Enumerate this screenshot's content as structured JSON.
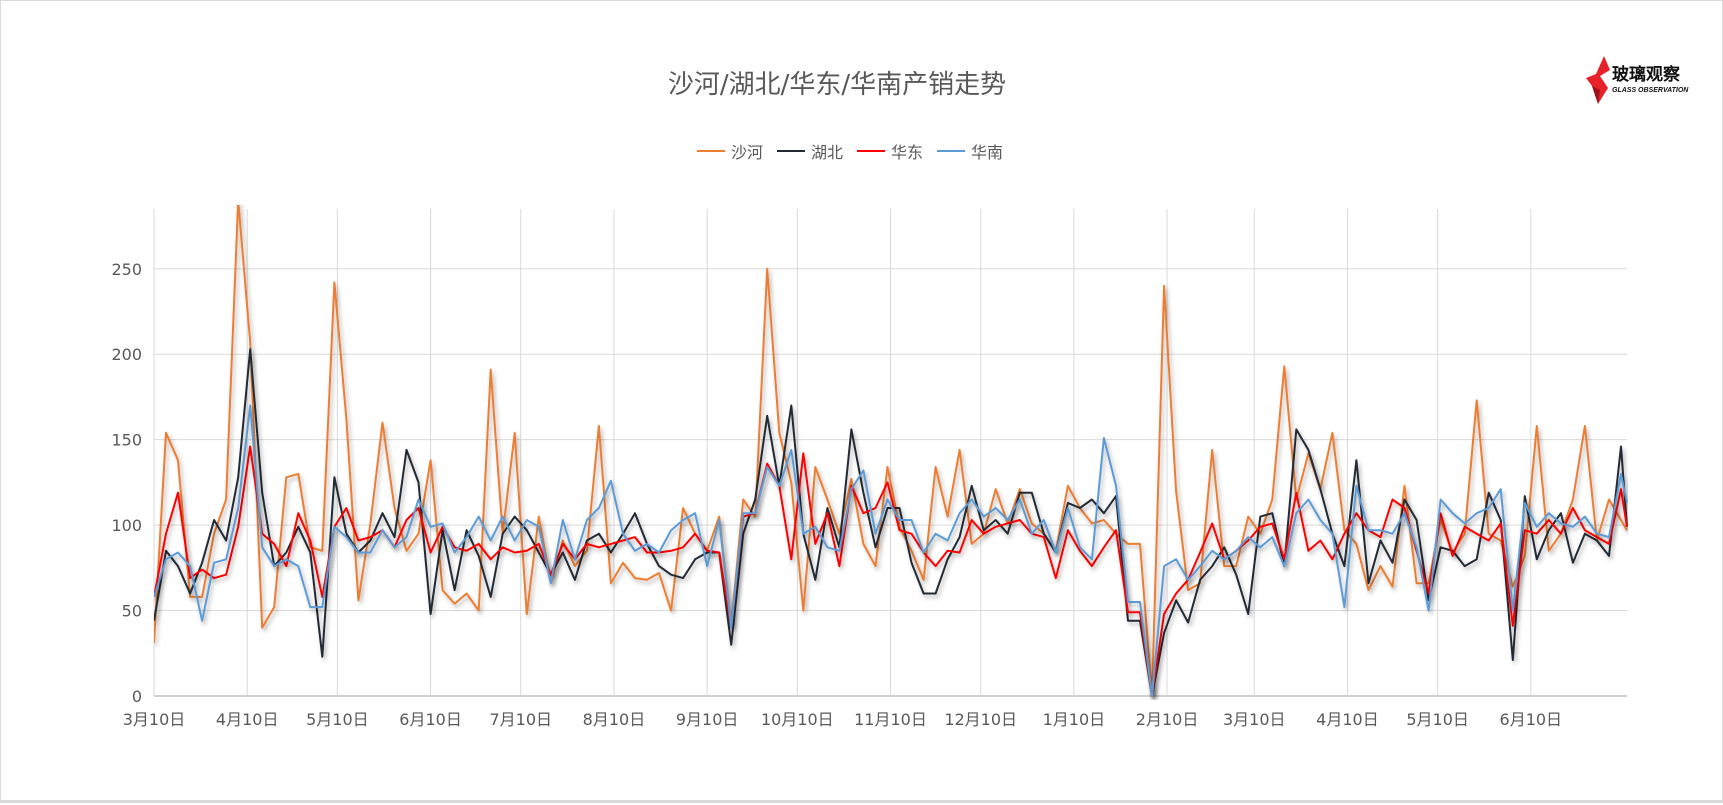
{
  "chart_data": {
    "type": "line",
    "title": "沙河/湖北/华东/华南产销走势",
    "xlabel": "",
    "ylabel": "",
    "ylim": [
      0,
      285
    ],
    "y_ticks": [
      "0",
      "50",
      "100",
      "150",
      "200",
      "250"
    ],
    "x_ticks": [
      {
        "date": "2023-03-10",
        "label": "3月10日"
      },
      {
        "date": "2023-04-10",
        "label": "4月10日"
      },
      {
        "date": "2023-05-10",
        "label": "5月10日"
      },
      {
        "date": "2023-06-10",
        "label": "6月10日"
      },
      {
        "date": "2023-07-10",
        "label": "7月10日"
      },
      {
        "date": "2023-08-10",
        "label": "8月10日"
      },
      {
        "date": "2023-09-10",
        "label": "9月10日"
      },
      {
        "date": "2023-10-10",
        "label": "10月10日"
      },
      {
        "date": "2023-11-10",
        "label": "11月10日"
      },
      {
        "date": "2023-12-10",
        "label": "12月10日"
      },
      {
        "date": "2024-01-10",
        "label": "1月10日"
      },
      {
        "date": "2024-02-10",
        "label": "2月10日"
      },
      {
        "date": "2024-03-10",
        "label": "3月10日"
      },
      {
        "date": "2024-04-10",
        "label": "4月10日"
      },
      {
        "date": "2024-05-10",
        "label": "5月10日"
      },
      {
        "date": "2024-06-10",
        "label": "6月10日"
      }
    ],
    "xlim": [
      "2023-03-10",
      "2024-07-12"
    ],
    "grid": true,
    "legend_position": "top",
    "x": [
      "2023-03-10",
      "2023-03-14",
      "2023-03-18",
      "2023-03-22",
      "2023-03-26",
      "2023-03-30",
      "2023-04-03",
      "2023-04-07",
      "2023-04-11",
      "2023-04-15",
      "2023-04-19",
      "2023-04-23",
      "2023-04-27",
      "2023-05-01",
      "2023-05-05",
      "2023-05-09",
      "2023-05-13",
      "2023-05-17",
      "2023-05-21",
      "2023-05-25",
      "2023-05-29",
      "2023-06-02",
      "2023-06-06",
      "2023-06-10",
      "2023-06-14",
      "2023-06-18",
      "2023-06-22",
      "2023-06-26",
      "2023-06-30",
      "2023-07-04",
      "2023-07-08",
      "2023-07-12",
      "2023-07-16",
      "2023-07-20",
      "2023-07-24",
      "2023-07-28",
      "2023-08-01",
      "2023-08-05",
      "2023-08-09",
      "2023-08-13",
      "2023-08-17",
      "2023-08-21",
      "2023-08-25",
      "2023-08-29",
      "2023-09-02",
      "2023-09-06",
      "2023-09-10",
      "2023-09-14",
      "2023-09-18",
      "2023-09-22",
      "2023-09-26",
      "2023-09-30",
      "2023-10-04",
      "2023-10-08",
      "2023-10-12",
      "2023-10-16",
      "2023-10-20",
      "2023-10-24",
      "2023-10-28",
      "2023-11-01",
      "2023-11-05",
      "2023-11-09",
      "2023-11-13",
      "2023-11-17",
      "2023-11-21",
      "2023-11-25",
      "2023-11-29",
      "2023-12-03",
      "2023-12-07",
      "2023-12-11",
      "2023-12-15",
      "2023-12-19",
      "2023-12-23",
      "2023-12-27",
      "2023-12-31",
      "2024-01-04",
      "2024-01-08",
      "2024-01-12",
      "2024-01-16",
      "2024-01-20",
      "2024-01-24",
      "2024-01-28",
      "2024-02-01",
      "2024-02-05",
      "2024-02-09",
      "2024-02-13",
      "2024-02-17",
      "2024-02-21",
      "2024-02-25",
      "2024-02-29",
      "2024-03-04",
      "2024-03-08",
      "2024-03-12",
      "2024-03-16",
      "2024-03-20",
      "2024-03-24",
      "2024-03-28",
      "2024-04-01",
      "2024-04-05",
      "2024-04-09",
      "2024-04-13",
      "2024-04-17",
      "2024-04-21",
      "2024-04-25",
      "2024-04-29",
      "2024-05-03",
      "2024-05-07",
      "2024-05-11",
      "2024-05-15",
      "2024-05-19",
      "2024-05-23",
      "2024-05-27",
      "2024-05-31",
      "2024-06-04",
      "2024-06-08",
      "2024-06-12",
      "2024-06-16",
      "2024-06-20",
      "2024-06-24",
      "2024-06-28",
      "2024-07-02",
      "2024-07-06",
      "2024-07-10",
      "2024-07-12"
    ],
    "series": [
      {
        "name": "沙河",
        "color": "#ED7D31",
        "values": [
          31,
          154,
          138,
          58,
          58,
          95,
          115,
          290,
          207,
          40,
          52,
          128,
          130,
          87,
          85,
          242,
          162,
          56,
          101,
          160,
          110,
          85,
          95,
          138,
          62,
          54,
          60,
          50,
          191,
          95,
          154,
          48,
          105,
          66,
          91,
          76,
          85,
          158,
          66,
          78,
          69,
          68,
          72,
          50,
          110,
          95,
          85,
          105,
          41,
          115,
          105,
          250,
          154,
          125,
          50,
          134,
          115,
          95,
          127,
          89,
          76,
          134,
          99,
          85,
          68,
          134,
          105,
          144,
          89,
          95,
          121,
          101,
          121,
          101,
          95,
          85,
          123,
          110,
          101,
          103,
          95,
          89,
          89,
          0,
          240,
          120,
          62,
          66,
          144,
          76,
          76,
          105,
          95,
          115,
          193,
          115,
          142,
          121,
          154,
          97,
          89,
          62,
          76,
          64,
          123,
          66,
          66,
          103,
          84,
          95,
          173,
          95,
          91,
          64,
          82,
          158,
          85,
          95,
          115,
          158,
          91,
          115,
          103,
          97
        ]
      },
      {
        "name": "湖北",
        "color": "#222A35",
        "values": [
          44,
          85,
          76,
          60,
          78,
          103,
          91,
          128,
          203,
          119,
          76,
          84,
          99,
          84,
          23,
          128,
          95,
          84,
          91,
          107,
          93,
          144,
          125,
          48,
          97,
          62,
          97,
          82,
          58,
          95,
          105,
          97,
          84,
          71,
          84,
          68,
          91,
          95,
          84,
          95,
          107,
          89,
          76,
          71,
          69,
          80,
          84,
          84,
          30,
          95,
          115,
          164,
          123,
          170,
          95,
          68,
          110,
          87,
          156,
          119,
          87,
          110,
          110,
          78,
          60,
          60,
          80,
          93,
          123,
          97,
          103,
          95,
          119,
          119,
          95,
          84,
          113,
          110,
          115,
          107,
          117,
          44,
          44,
          0,
          37,
          56,
          43,
          68,
          76,
          87,
          71,
          48,
          105,
          107,
          76,
          156,
          144,
          121,
          95,
          76,
          138,
          66,
          91,
          78,
          115,
          103,
          56,
          87,
          85,
          76,
          80,
          119,
          103,
          21,
          117,
          80,
          97,
          107,
          78,
          95,
          91,
          82,
          146,
          99
        ]
      },
      {
        "name": "华东",
        "color": "#FF0000",
        "values": [
          58,
          95,
          119,
          69,
          74,
          69,
          71,
          99,
          146,
          95,
          89,
          76,
          107,
          91,
          58,
          99,
          110,
          91,
          93,
          97,
          87,
          103,
          110,
          84,
          99,
          87,
          85,
          89,
          80,
          87,
          84,
          85,
          89,
          71,
          89,
          80,
          89,
          87,
          89,
          91,
          93,
          84,
          84,
          85,
          87,
          95,
          85,
          84,
          40,
          105,
          107,
          136,
          123,
          80,
          142,
          89,
          107,
          76,
          123,
          107,
          110,
          125,
          97,
          95,
          84,
          76,
          85,
          84,
          103,
          95,
          99,
          101,
          103,
          95,
          93,
          69,
          97,
          85,
          76,
          87,
          97,
          49,
          49,
          0,
          48,
          60,
          68,
          84,
          101,
          80,
          85,
          91,
          99,
          101,
          80,
          119,
          85,
          91,
          80,
          95,
          107,
          97,
          93,
          115,
          110,
          85,
          60,
          107,
          82,
          99,
          95,
          91,
          101,
          41,
          97,
          95,
          103,
          95,
          110,
          97,
          93,
          89,
          121,
          99
        ]
      },
      {
        "name": "华南",
        "color": "#5B9BD5",
        "values": [
          58,
          80,
          84,
          76,
          44,
          78,
          80,
          110,
          170,
          87,
          76,
          80,
          76,
          52,
          52,
          99,
          93,
          84,
          84,
          97,
          87,
          93,
          115,
          99,
          101,
          84,
          93,
          105,
          91,
          105,
          91,
          103,
          99,
          66,
          103,
          80,
          103,
          110,
          126,
          95,
          85,
          89,
          84,
          97,
          103,
          107,
          76,
          103,
          40,
          107,
          107,
          134,
          123,
          144,
          95,
          99,
          87,
          85,
          121,
          132,
          95,
          115,
          103,
          103,
          84,
          95,
          91,
          107,
          115,
          105,
          110,
          103,
          115,
          95,
          103,
          84,
          110,
          87,
          80,
          151,
          123,
          55,
          55,
          0,
          76,
          80,
          68,
          76,
          85,
          80,
          85,
          93,
          87,
          93,
          76,
          107,
          115,
          103,
          95,
          52,
          123,
          97,
          97,
          95,
          107,
          87,
          50,
          115,
          107,
          101,
          107,
          110,
          121,
          50,
          113,
          99,
          107,
          101,
          99,
          105,
          95,
          93,
          130,
          113
        ]
      }
    ]
  },
  "logo": {
    "cn": "玻璃观察",
    "en": "GLASS OBSERVATION",
    "color": "#E6212A"
  }
}
